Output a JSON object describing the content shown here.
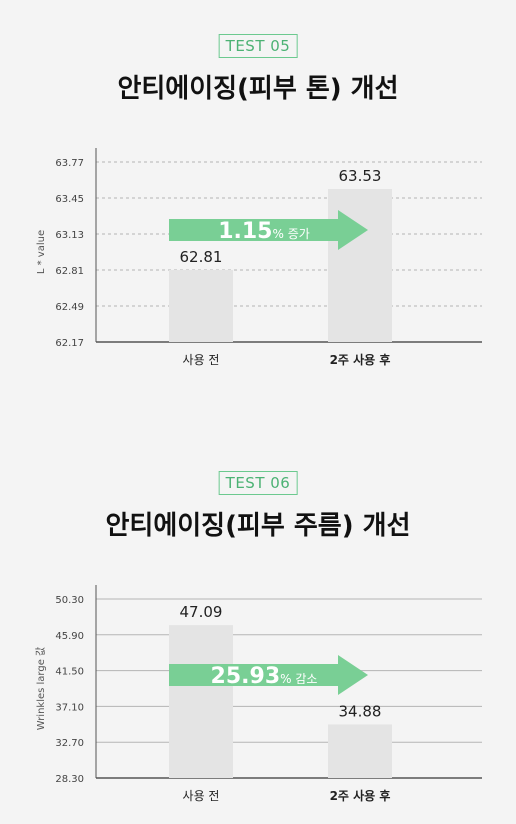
{
  "chart_data": [
    {
      "type": "bar",
      "badge": "TEST 05",
      "title": "안티에이징(피부 톤) 개선",
      "ylabel": "L * value",
      "categories": [
        "사용 전",
        "2주 사용 후"
      ],
      "values": [
        62.81,
        63.53
      ],
      "value_labels": [
        "62.81",
        "63.53"
      ],
      "yticks": [
        "63.77",
        "63.45",
        "63.13",
        "62.81",
        "62.49",
        "62.17"
      ],
      "ylim": [
        62.17,
        63.77
      ],
      "grid": "dashed",
      "arrow_value": "1.15",
      "arrow_unit": "% 증가",
      "colors": {
        "bar": "#e4e4e4",
        "arrow": "#79cf95",
        "badge": "#4cb274"
      }
    },
    {
      "type": "bar",
      "badge": "TEST 06",
      "title": "안티에이징(피부 주름) 개선",
      "ylabel": "Wrinkles large 값",
      "categories": [
        "사용 전",
        "2주 사용 후"
      ],
      "values": [
        47.09,
        34.88
      ],
      "value_labels": [
        "47.09",
        "34.88"
      ],
      "yticks": [
        "50.30",
        "45.90",
        "41.50",
        "37.10",
        "32.70",
        "28.30"
      ],
      "ylim": [
        28.3,
        50.3
      ],
      "grid": "solid",
      "arrow_value": "25.93",
      "arrow_unit": "% 감소",
      "colors": {
        "bar": "#e4e4e4",
        "arrow": "#79cf95",
        "badge": "#4cb274"
      }
    }
  ]
}
